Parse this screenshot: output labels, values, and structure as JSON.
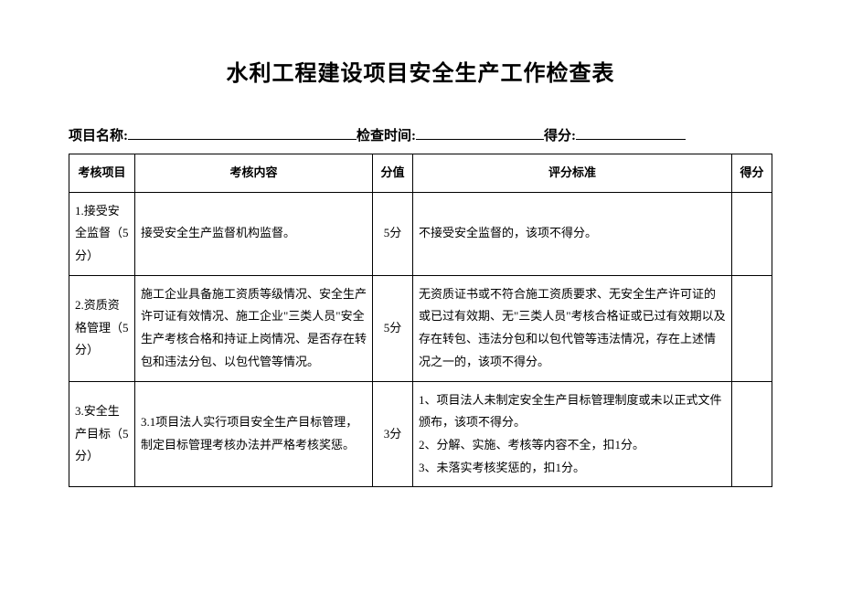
{
  "title": "水利工程建设项目安全生产工作检查表",
  "form": {
    "project_label": "项目名称:",
    "time_label": "检查时间:",
    "score_label": "得分:"
  },
  "table": {
    "headers": {
      "item": "考核项目",
      "content": "考核内容",
      "points": "分值",
      "criteria": "评分标准",
      "score": "得分"
    },
    "rows": [
      {
        "item": "1.接受安全监督（5分）",
        "content": "接受安全生产监督机构监督。",
        "points": "5分",
        "criteria": "不接受安全监督的，该项不得分。",
        "score": ""
      },
      {
        "item": "2.资质资格管理（5分）",
        "content": "施工企业具备施工资质等级情况、安全生产许可证有效情况、施工企业\"三类人员\"安全生产考核合格和持证上岗情况、是否存在转包和违法分包、以包代管等情况。",
        "points": "5分",
        "criteria": "无资质证书或不符合施工资质要求、无安全生产许可证的或已过有效期、无\"三类人员\"考核合格证或已过有效期以及存在转包、违法分包和以包代管等违法情况，存在上述情况之一的，该项不得分。",
        "score": ""
      },
      {
        "item": "3.安全生产目标（5分）",
        "content": "3.1项目法人实行项目安全生产目标管理，制定目标管理考核办法并严格考核奖惩。",
        "points": "3分",
        "criteria": "1、项目法人未制定安全生产目标管理制度或未以正式文件颁布，该项不得分。\n2、分解、实施、考核等内容不全，扣1分。\n3、未落实考核奖惩的，扣1分。",
        "score": ""
      }
    ]
  }
}
